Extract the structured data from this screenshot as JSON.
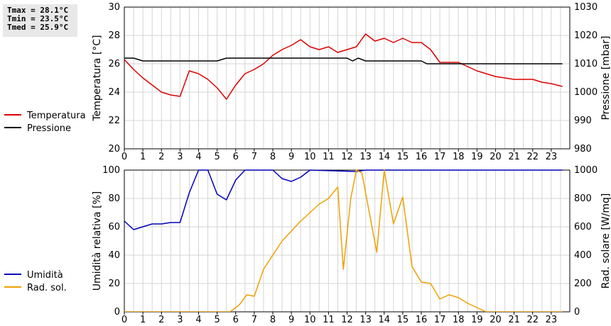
{
  "stats": {
    "tmax": "Tmax = 28.1°C",
    "tmin": "Tmin = 23.5°C",
    "tmed": "Tmed = 25.9°C"
  },
  "chart_data": [
    {
      "type": "line",
      "x_ticks": [
        "0",
        "1",
        "2",
        "3",
        "4",
        "5",
        "6",
        "7",
        "8",
        "9",
        "10",
        "11",
        "12",
        "13",
        "14",
        "15",
        "16",
        "17",
        "18",
        "19",
        "20",
        "21",
        "22",
        "23"
      ],
      "xlim": [
        0,
        24
      ],
      "ylabel_left": "Temperatura [°C]",
      "ylabel_right": "Pressione [mbar]",
      "ylim_left": [
        20,
        30
      ],
      "ylim_right": [
        980,
        1030
      ],
      "y_ticks_left": [
        "20",
        "22",
        "24",
        "26",
        "28",
        "30"
      ],
      "y_ticks_right": [
        "980",
        "990",
        "1000",
        "1010",
        "1020",
        "1030"
      ],
      "grid": true,
      "legend_placement": "left",
      "series": [
        {
          "name": "Temperatura",
          "axis": "left",
          "color": "#dd0000",
          "points": [
            [
              0,
              26.3
            ],
            [
              0.5,
              25.6
            ],
            [
              1,
              25.0
            ],
            [
              1.5,
              24.5
            ],
            [
              2,
              24.0
            ],
            [
              2.5,
              23.8
            ],
            [
              3,
              23.7
            ],
            [
              3.5,
              25.5
            ],
            [
              4,
              25.3
            ],
            [
              4.5,
              24.9
            ],
            [
              5,
              24.3
            ],
            [
              5.5,
              23.5
            ],
            [
              6,
              24.5
            ],
            [
              6.5,
              25.3
            ],
            [
              7,
              25.6
            ],
            [
              7.5,
              26.0
            ],
            [
              8,
              26.6
            ],
            [
              8.5,
              27.0
            ],
            [
              9,
              27.3
            ],
            [
              9.5,
              27.7
            ],
            [
              10,
              27.2
            ],
            [
              10.5,
              27.0
            ],
            [
              11,
              27.2
            ],
            [
              11.5,
              26.8
            ],
            [
              12,
              27.0
            ],
            [
              12.5,
              27.2
            ],
            [
              13,
              28.1
            ],
            [
              13.5,
              27.6
            ],
            [
              14,
              27.8
            ],
            [
              14.5,
              27.5
            ],
            [
              15,
              27.8
            ],
            [
              15.5,
              27.5
            ],
            [
              16,
              27.5
            ],
            [
              16.5,
              27.0
            ],
            [
              17,
              26.1
            ],
            [
              17.5,
              26.1
            ],
            [
              18,
              26.1
            ],
            [
              18.5,
              25.8
            ],
            [
              19,
              25.5
            ],
            [
              19.5,
              25.3
            ],
            [
              20,
              25.1
            ],
            [
              20.5,
              25.0
            ],
            [
              21,
              24.9
            ],
            [
              21.5,
              24.9
            ],
            [
              22,
              24.9
            ],
            [
              22.5,
              24.7
            ],
            [
              23,
              24.6
            ],
            [
              23.6,
              24.4
            ]
          ]
        },
        {
          "name": "Pressione",
          "axis": "right",
          "color": "#000000",
          "points": [
            [
              0,
              1012
            ],
            [
              0.5,
              1012
            ],
            [
              1,
              1011
            ],
            [
              5,
              1011
            ],
            [
              5.5,
              1012
            ],
            [
              12,
              1012
            ],
            [
              12.3,
              1011
            ],
            [
              12.6,
              1012
            ],
            [
              13,
              1011
            ],
            [
              16,
              1011
            ],
            [
              16.3,
              1010
            ],
            [
              23.6,
              1010
            ]
          ]
        }
      ]
    },
    {
      "type": "line",
      "x_ticks": [
        "0",
        "1",
        "2",
        "3",
        "4",
        "5",
        "6",
        "7",
        "8",
        "9",
        "10",
        "11",
        "12",
        "13",
        "14",
        "15",
        "16",
        "17",
        "18",
        "19",
        "20",
        "21",
        "22",
        "23"
      ],
      "xlim": [
        0,
        24
      ],
      "ylabel_left": "Umidità relativa [%]",
      "ylabel_right": "Rad. solare [W/mq]",
      "ylim_left": [
        0,
        100
      ],
      "ylim_right": [
        0,
        1000
      ],
      "y_ticks_left": [
        "0",
        "20",
        "40",
        "60",
        "80",
        "100"
      ],
      "y_ticks_right": [
        "0",
        "200",
        "400",
        "600",
        "800",
        "1000"
      ],
      "grid": true,
      "legend_placement": "left",
      "series": [
        {
          "name": "Umidità",
          "axis": "left",
          "color": "#0000bb",
          "points": [
            [
              0,
              64
            ],
            [
              0.5,
              58
            ],
            [
              1,
              60
            ],
            [
              1.5,
              62
            ],
            [
              2,
              62
            ],
            [
              2.5,
              63
            ],
            [
              3,
              63
            ],
            [
              3.5,
              84
            ],
            [
              4,
              100
            ],
            [
              4.5,
              100
            ],
            [
              5,
              83
            ],
            [
              5.5,
              79
            ],
            [
              6,
              93
            ],
            [
              6.5,
              100
            ],
            [
              8,
              100
            ],
            [
              8.5,
              94
            ],
            [
              9,
              92
            ],
            [
              9.5,
              95
            ],
            [
              10,
              100
            ],
            [
              12.5,
              99
            ],
            [
              13,
              100
            ],
            [
              23.6,
              100
            ]
          ]
        },
        {
          "name": "Rad. sol.",
          "axis": "right",
          "color": "#f0a000",
          "points": [
            [
              0,
              0
            ],
            [
              5.7,
              0
            ],
            [
              6.2,
              50
            ],
            [
              6.6,
              120
            ],
            [
              7,
              110
            ],
            [
              7.5,
              300
            ],
            [
              8,
              400
            ],
            [
              8.5,
              500
            ],
            [
              9,
              570
            ],
            [
              9.5,
              640
            ],
            [
              10,
              700
            ],
            [
              10.5,
              760
            ],
            [
              11,
              800
            ],
            [
              11.5,
              880
            ],
            [
              11.8,
              300
            ],
            [
              12.2,
              800
            ],
            [
              12.5,
              1000
            ],
            [
              12.8,
              980
            ],
            [
              13.2,
              700
            ],
            [
              13.6,
              420
            ],
            [
              14,
              1000
            ],
            [
              14.5,
              620
            ],
            [
              15,
              810
            ],
            [
              15.5,
              320
            ],
            [
              16,
              210
            ],
            [
              16.5,
              200
            ],
            [
              17,
              90
            ],
            [
              17.5,
              120
            ],
            [
              18,
              100
            ],
            [
              18.5,
              60
            ],
            [
              19,
              30
            ],
            [
              19.5,
              0
            ],
            [
              23.6,
              0
            ]
          ]
        }
      ]
    }
  ]
}
